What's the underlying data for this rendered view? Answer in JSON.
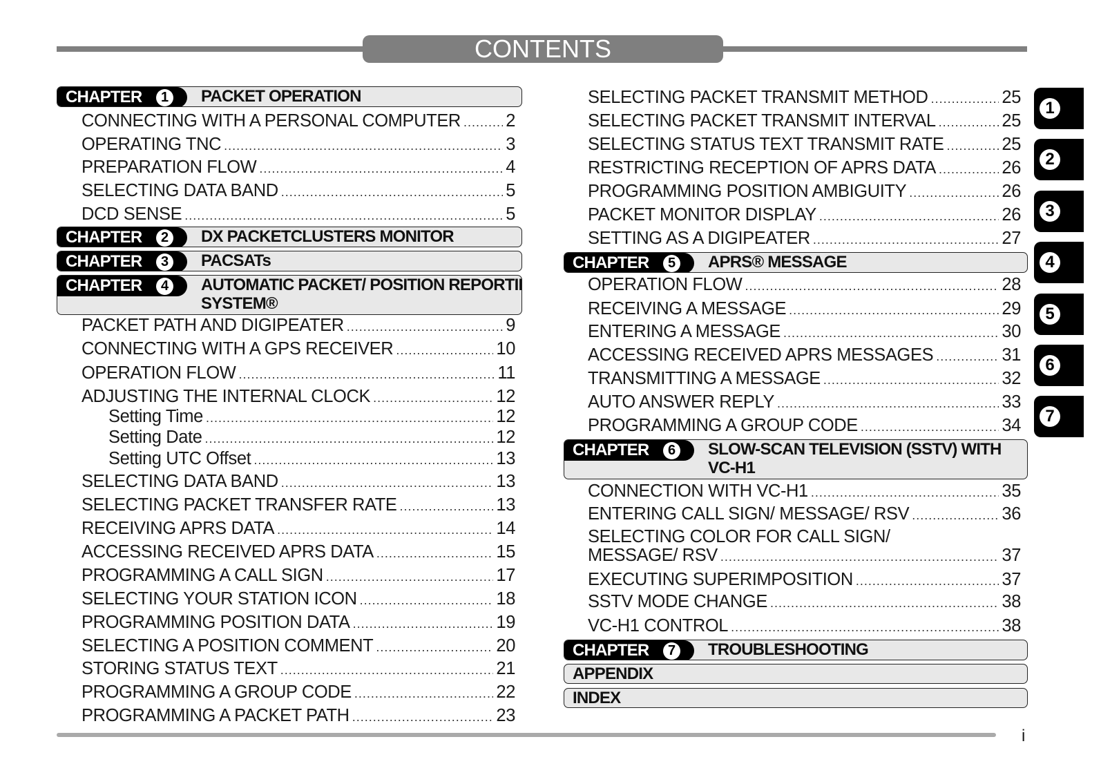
{
  "header": {
    "title": "CONTENTS"
  },
  "chapter_label": "CHAPTER",
  "left": {
    "chapters": [
      {
        "num": "1",
        "title": "PACKET OPERATION"
      },
      {
        "num": "2",
        "title": "DX PACKETCLUSTERS MONITOR"
      },
      {
        "num": "3",
        "title": "PACSATs"
      },
      {
        "num": "4",
        "title": "AUTOMATIC PACKET/ POSITION REPORTING\nSYSTEM®"
      }
    ],
    "entries": [
      {
        "text": "CONNECTING WITH A PERSONAL COMPUTER",
        "page": "2"
      },
      {
        "text": "OPERATING TNC",
        "page": "3"
      },
      {
        "text": "PREPARATION FLOW",
        "page": "4"
      },
      {
        "text": "SELECTING DATA BAND",
        "page": "5"
      },
      {
        "text": "DCD SENSE",
        "page": "5"
      },
      {
        "text": "PACKET PATH AND DIGIPEATER",
        "page": "9"
      },
      {
        "text": "CONNECTING WITH A GPS RECEIVER",
        "page": "10"
      },
      {
        "text": "OPERATION FLOW",
        "page": "11"
      },
      {
        "text": "ADJUSTING THE INTERNAL CLOCK",
        "page": "12"
      },
      {
        "text": "Setting Time",
        "page": "12"
      },
      {
        "text": "Setting Date",
        "page": "12"
      },
      {
        "text": "Setting UTC Offset",
        "page": "13"
      },
      {
        "text": "SELECTING DATA BAND",
        "page": "13"
      },
      {
        "text": "SELECTING PACKET TRANSFER RATE",
        "page": "13"
      },
      {
        "text": "RECEIVING APRS DATA",
        "page": "14"
      },
      {
        "text": "ACCESSING RECEIVED APRS DATA",
        "page": "15"
      },
      {
        "text": "PROGRAMMING A CALL SIGN",
        "page": "17"
      },
      {
        "text": "SELECTING YOUR STATION ICON",
        "page": "18"
      },
      {
        "text": "PROGRAMMING POSITION DATA",
        "page": "19"
      },
      {
        "text": "SELECTING A POSITION COMMENT",
        "page": "20"
      },
      {
        "text": "STORING STATUS TEXT",
        "page": "21"
      },
      {
        "text": "PROGRAMMING A GROUP CODE",
        "page": "22"
      },
      {
        "text": "PROGRAMMING A PACKET PATH",
        "page": "23"
      }
    ]
  },
  "right": {
    "chapters": [
      {
        "num": "5",
        "title": "APRS® MESSAGE"
      },
      {
        "num": "6",
        "title": "SLOW-SCAN TELEVISION (SSTV) WITH\nVC-H1"
      },
      {
        "num": "7",
        "title": "TROUBLESHOOTING"
      }
    ],
    "plain": [
      "APPENDIX",
      "INDEX"
    ],
    "entries": [
      {
        "text": "SELECTING PACKET TRANSMIT METHOD",
        "page": "25"
      },
      {
        "text": "SELECTING PACKET TRANSMIT INTERVAL",
        "page": "25"
      },
      {
        "text": "SELECTING STATUS TEXT TRANSMIT RATE",
        "page": "25"
      },
      {
        "text": "RESTRICTING RECEPTION OF APRS DATA",
        "page": "26"
      },
      {
        "text": "PROGRAMMING POSITION AMBIGUITY",
        "page": "26"
      },
      {
        "text": "PACKET MONITOR DISPLAY",
        "page": "26"
      },
      {
        "text": "SETTING AS A DIGIPEATER",
        "page": "27"
      },
      {
        "text": "OPERATION FLOW",
        "page": "28"
      },
      {
        "text": "RECEIVING A MESSAGE",
        "page": "29"
      },
      {
        "text": "ENTERING A MESSAGE",
        "page": "30"
      },
      {
        "text": "ACCESSING RECEIVED APRS MESSAGES",
        "page": "31"
      },
      {
        "text": "TRANSMITTING A MESSAGE",
        "page": "32"
      },
      {
        "text": "AUTO ANSWER REPLY",
        "page": "33"
      },
      {
        "text": "PROGRAMMING A GROUP CODE",
        "page": "34"
      },
      {
        "text": "CONNECTION WITH VC-H1",
        "page": "35"
      },
      {
        "text": "ENTERING CALL SIGN/ MESSAGE/ RSV",
        "page": "36"
      },
      {
        "text": "SELECTING COLOR FOR CALL SIGN/",
        "page": ""
      },
      {
        "text": "MESSAGE/ RSV",
        "page": "37"
      },
      {
        "text": "EXECUTING SUPERIMPOSITION",
        "page": "37"
      },
      {
        "text": "SSTV MODE CHANGE",
        "page": "38"
      },
      {
        "text": "VC-H1 CONTROL",
        "page": "38"
      }
    ]
  },
  "side_tabs": [
    "1",
    "2",
    "3",
    "4",
    "5",
    "6",
    "7"
  ],
  "footer": {
    "page": "i"
  }
}
